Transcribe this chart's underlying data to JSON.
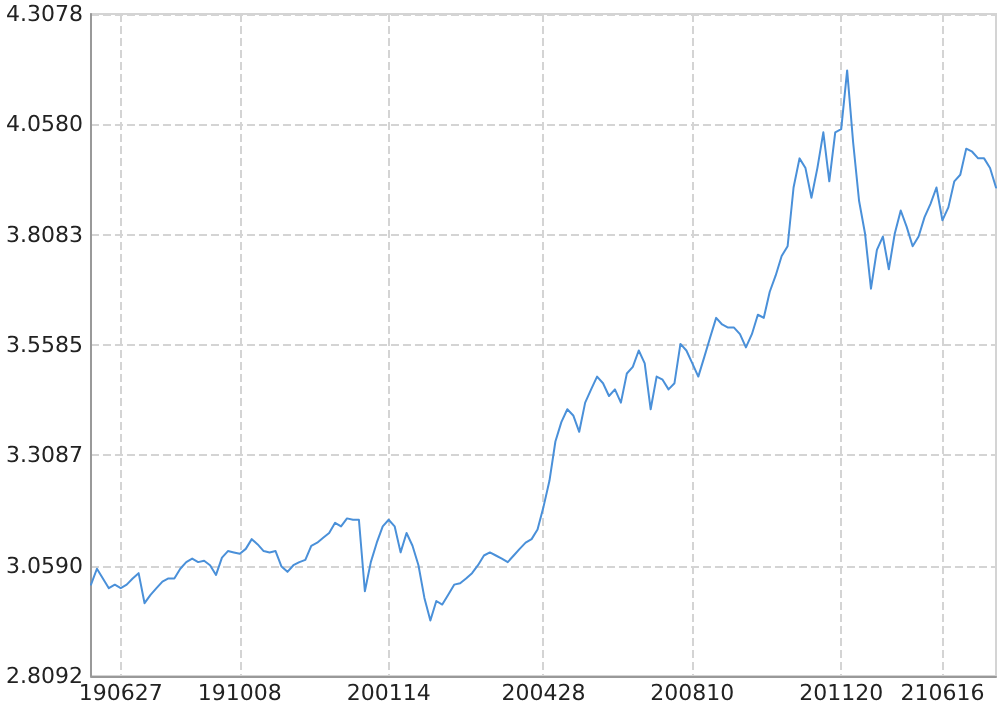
{
  "chart_data": {
    "type": "line",
    "categories": [
      null,
      null,
      null,
      null,
      null,
      "190627",
      null,
      null,
      null,
      null,
      null,
      null,
      null,
      null,
      null,
      null,
      null,
      null,
      null,
      null,
      null,
      null,
      null,
      null,
      null,
      "191008",
      null,
      null,
      null,
      null,
      null,
      null,
      null,
      null,
      null,
      null,
      null,
      null,
      null,
      null,
      null,
      null,
      null,
      null,
      null,
      null,
      null,
      null,
      null,
      null,
      "200114",
      null,
      null,
      null,
      null,
      null,
      null,
      null,
      null,
      null,
      null,
      null,
      null,
      null,
      null,
      null,
      null,
      null,
      null,
      null,
      null,
      null,
      null,
      null,
      null,
      null,
      "200428",
      null,
      null,
      null,
      null,
      null,
      null,
      null,
      null,
      null,
      null,
      null,
      null,
      null,
      null,
      null,
      null,
      null,
      null,
      null,
      null,
      null,
      null,
      null,
      null,
      "200810",
      null,
      null,
      null,
      null,
      null,
      null,
      null,
      null,
      null,
      null,
      null,
      null,
      null,
      null,
      null,
      null,
      null,
      null,
      null,
      null,
      null,
      null,
      null,
      null,
      "201120",
      null,
      null,
      null,
      null,
      null,
      null,
      null,
      null,
      null,
      null,
      null,
      null,
      null,
      null,
      null,
      null,
      "210616",
      null,
      null,
      null,
      null,
      null,
      null,
      null,
      null,
      null
    ],
    "series": [
      {
        "color": "#4a90d9",
        "values": [
          3.016,
          3.052,
          3.03,
          3.008,
          3.016,
          3.008,
          3.016,
          3.03,
          3.042,
          2.974,
          2.993,
          3.008,
          3.023,
          3.03,
          3.03,
          3.052,
          3.067,
          3.075,
          3.067,
          3.07,
          3.06,
          3.038,
          3.077,
          3.092,
          3.089,
          3.086,
          3.097,
          3.119,
          3.107,
          3.092,
          3.089,
          3.092,
          3.057,
          3.045,
          3.06,
          3.067,
          3.072,
          3.104,
          3.111,
          3.122,
          3.133,
          3.156,
          3.148,
          3.166,
          3.163,
          3.163,
          3.001,
          3.067,
          3.111,
          3.148,
          3.163,
          3.148,
          3.089,
          3.133,
          3.104,
          3.06,
          2.986,
          2.935,
          2.979,
          2.971,
          2.993,
          3.016,
          3.019,
          3.03,
          3.042,
          3.06,
          3.082,
          3.089,
          3.082,
          3.075,
          3.067,
          3.082,
          3.097,
          3.111,
          3.119,
          3.141,
          3.192,
          3.251,
          3.34,
          3.384,
          3.413,
          3.399,
          3.362,
          3.428,
          3.458,
          3.487,
          3.472,
          3.443,
          3.458,
          3.428,
          3.494,
          3.509,
          3.546,
          3.517,
          3.413,
          3.487,
          3.48,
          3.458,
          3.472,
          3.561,
          3.546,
          3.517,
          3.487,
          3.531,
          3.576,
          3.62,
          3.605,
          3.598,
          3.598,
          3.583,
          3.553,
          3.583,
          3.627,
          3.62,
          3.679,
          3.716,
          3.76,
          3.782,
          3.915,
          3.981,
          3.959,
          3.892,
          3.959,
          4.04,
          3.929,
          4.04,
          4.047,
          4.18,
          4.018,
          3.885,
          3.811,
          3.686,
          3.774,
          3.804,
          3.73,
          3.811,
          3.863,
          3.826,
          3.782,
          3.804,
          3.848,
          3.878,
          3.915,
          3.841,
          3.87,
          3.929,
          3.944,
          4.003,
          3.996,
          3.981,
          3.981,
          3.959,
          3.915
        ]
      }
    ],
    "ylim": [
      2.8092,
      4.3078
    ],
    "yticks": [
      2.8092,
      {
        "value": 3.059,
        "label": "3.0590"
      },
      3.3087,
      3.5585,
      3.8083,
      {
        "value": 4.058,
        "label": "4.0580"
      },
      4.3078
    ],
    "grid": true,
    "marker": "none",
    "line_style": "solid"
  }
}
